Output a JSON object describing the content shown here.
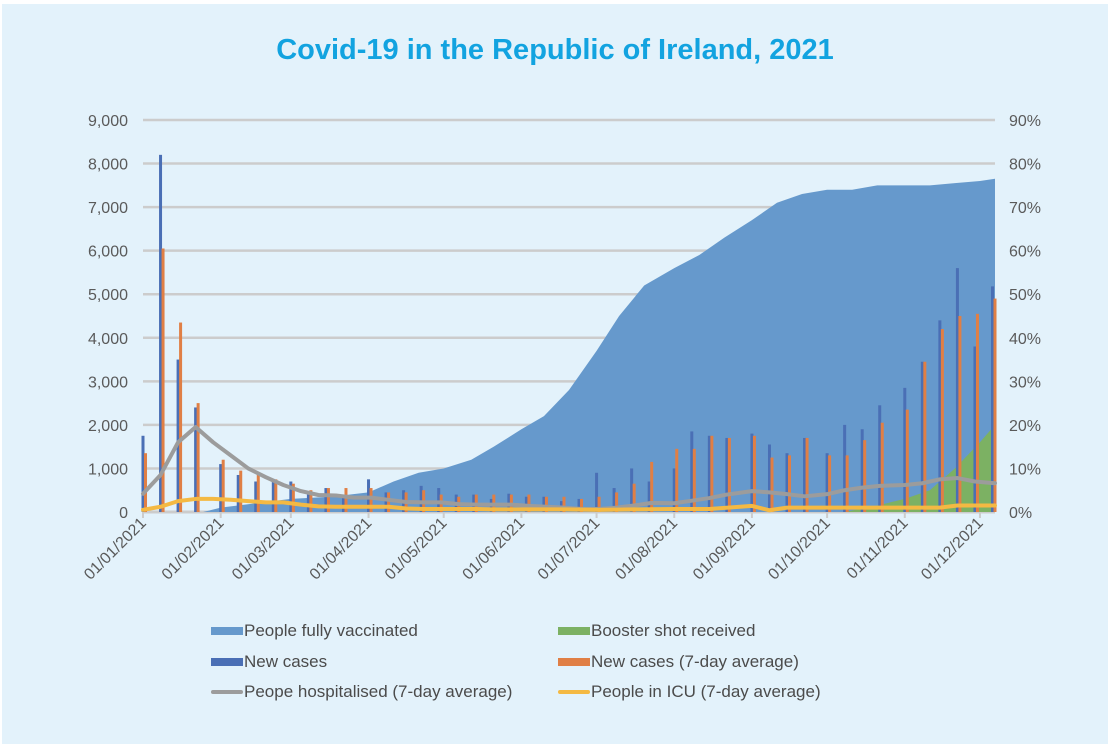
{
  "chart_data": {
    "type": "bar+line+area",
    "title": "Covid-19 in the Republic of Ireland, 2021",
    "x_unit": "day of year 2021 (0 = 01/01/2021)",
    "x_tick_labels": [
      "01/01/2021",
      "01/02/2021",
      "01/03/2021",
      "01/04/2021",
      "01/05/2021",
      "01/06/2021",
      "01/07/2021",
      "01/08/2021",
      "01/09/2021",
      "01/10/2021",
      "01/11/2021",
      "01/12/2021"
    ],
    "x_tick_days": [
      0,
      31,
      59,
      90,
      120,
      151,
      181,
      212,
      243,
      273,
      304,
      334
    ],
    "x_range": [
      0,
      340
    ],
    "left_axis": {
      "range": [
        0,
        9000
      ],
      "ticks": [
        "0",
        "1,000",
        "2,000",
        "3,000",
        "4,000",
        "5,000",
        "6,000",
        "7,000",
        "8,000",
        "9,000"
      ],
      "tick_values": [
        0,
        1000,
        2000,
        3000,
        4000,
        5000,
        6000,
        7000,
        8000,
        9000
      ]
    },
    "right_axis": {
      "range": [
        0,
        90
      ],
      "ticks": [
        "0%",
        "10%",
        "20%",
        "30%",
        "40%",
        "50%",
        "60%",
        "70%",
        "80%",
        "90%"
      ],
      "tick_values": [
        0,
        10,
        20,
        30,
        40,
        50,
        60,
        70,
        80,
        90
      ]
    },
    "grid": true,
    "legend_position": "bottom",
    "series": [
      {
        "name": "People fully vaccinated",
        "type": "area",
        "axis": "right",
        "color": "#6699cc",
        "x": [
          0,
          24,
          31,
          45,
          59,
          75,
          90,
          100,
          110,
          120,
          131,
          140,
          151,
          160,
          170,
          181,
          190,
          200,
          212,
          222,
          232,
          243,
          253,
          263,
          273,
          283,
          293,
          304,
          314,
          324,
          334,
          340
        ],
        "values": [
          0,
          0,
          1,
          2,
          3,
          3.5,
          4.5,
          7,
          9,
          10,
          12,
          15,
          19,
          22,
          28,
          37,
          45,
          52,
          56,
          59,
          63,
          67,
          71,
          73,
          74,
          74,
          75,
          75,
          75,
          75.5,
          76,
          76.5
        ]
      },
      {
        "name": "Booster shot received",
        "type": "area",
        "axis": "right",
        "color": "#7cb163",
        "x": [
          0,
          280,
          293,
          304,
          314,
          324,
          334,
          340
        ],
        "values": [
          0,
          0,
          1.5,
          3,
          5,
          10,
          16,
          20
        ]
      },
      {
        "name": "New cases",
        "type": "bar",
        "axis": "left",
        "color": "#4a6fb5",
        "x": [
          0,
          7,
          14,
          21,
          31,
          38,
          45,
          52,
          59,
          66,
          73,
          80,
          90,
          97,
          104,
          111,
          118,
          125,
          132,
          139,
          146,
          153,
          160,
          167,
          174,
          181,
          188,
          195,
          202,
          212,
          219,
          226,
          233,
          243,
          250,
          257,
          264,
          273,
          280,
          287,
          294,
          304,
          311,
          318,
          325,
          332,
          339
        ],
        "values": [
          1750,
          8200,
          3500,
          2400,
          1100,
          850,
          700,
          750,
          700,
          450,
          550,
          400,
          750,
          450,
          500,
          600,
          550,
          400,
          400,
          300,
          420,
          350,
          350,
          250,
          300,
          900,
          550,
          1000,
          700,
          1000,
          1850,
          1750,
          1700,
          1800,
          1550,
          1350,
          1700,
          1350,
          2000,
          1900,
          2450,
          2850,
          3450,
          4400,
          5600,
          3800,
          5180
        ]
      },
      {
        "name": "New cases (7-day average)",
        "type": "bar",
        "axis": "left",
        "color": "#e07f45",
        "x": [
          1,
          8,
          15,
          22,
          32,
          39,
          46,
          53,
          60,
          67,
          74,
          81,
          91,
          98,
          105,
          112,
          119,
          126,
          133,
          140,
          147,
          154,
          161,
          168,
          175,
          182,
          189,
          196,
          203,
          213,
          220,
          227,
          234,
          244,
          251,
          258,
          265,
          274,
          281,
          288,
          295,
          305,
          312,
          319,
          326,
          333,
          340
        ],
        "values": [
          1350,
          6050,
          4350,
          2500,
          1200,
          950,
          850,
          750,
          650,
          500,
          550,
          550,
          550,
          450,
          450,
          500,
          400,
          350,
          400,
          400,
          400,
          400,
          350,
          350,
          300,
          350,
          450,
          650,
          1150,
          1450,
          1450,
          1750,
          1700,
          1750,
          1250,
          1300,
          1700,
          1300,
          1300,
          1650,
          2050,
          2350,
          3450,
          4200,
          4500,
          4550,
          4900
        ]
      },
      {
        "name": "Peope hospitalised (7-day average)",
        "type": "line",
        "axis": "left",
        "color": "#9c9c9c",
        "x": [
          0,
          7,
          14,
          21,
          28,
          35,
          42,
          49,
          56,
          63,
          70,
          77,
          84,
          91,
          98,
          105,
          112,
          119,
          126,
          133,
          140,
          147,
          154,
          161,
          168,
          175,
          182,
          189,
          196,
          203,
          212,
          219,
          226,
          233,
          243,
          250,
          257,
          264,
          273,
          280,
          287,
          294,
          304,
          311,
          318,
          325,
          332,
          340
        ],
        "values": [
          420,
          850,
          1600,
          1950,
          1600,
          1300,
          1000,
          800,
          620,
          480,
          390,
          380,
          330,
          330,
          280,
          230,
          220,
          220,
          180,
          170,
          170,
          170,
          140,
          120,
          100,
          70,
          70,
          100,
          150,
          210,
          200,
          260,
          320,
          400,
          480,
          450,
          410,
          360,
          410,
          500,
          560,
          600,
          620,
          660,
          750,
          780,
          700,
          660
        ]
      },
      {
        "name": "People in ICU (7-day average)",
        "type": "line",
        "axis": "left",
        "color": "#f4b943",
        "x": [
          0,
          7,
          14,
          21,
          28,
          35,
          42,
          49,
          56,
          63,
          70,
          77,
          84,
          91,
          98,
          105,
          112,
          119,
          126,
          133,
          140,
          154,
          168,
          182,
          196,
          212,
          226,
          243,
          250,
          257,
          264,
          273,
          304,
          318,
          325,
          332,
          340
        ],
        "values": [
          50,
          120,
          250,
          300,
          300,
          280,
          250,
          220,
          220,
          170,
          130,
          120,
          120,
          120,
          120,
          80,
          70,
          70,
          70,
          70,
          60,
          60,
          60,
          50,
          60,
          70,
          70,
          140,
          40,
          100,
          100,
          100,
          100,
          100,
          150,
          150,
          150
        ]
      }
    ]
  },
  "legend": {
    "items": [
      {
        "label": "People fully vaccinated",
        "kind": "box",
        "color": "#6699cc"
      },
      {
        "label": "Booster shot received",
        "kind": "box",
        "color": "#7cb163"
      },
      {
        "label": "New cases",
        "kind": "box",
        "color": "#4a6fb5"
      },
      {
        "label": "New cases (7-day average)",
        "kind": "box",
        "color": "#e07f45"
      },
      {
        "label": "Peope hospitalised (7-day average)",
        "kind": "line",
        "color": "#9c9c9c"
      },
      {
        "label": "People in ICU (7-day average)",
        "kind": "line",
        "color": "#f4b943"
      }
    ]
  },
  "colors": {
    "background": "#e3f2fb",
    "title": "#12a3e0",
    "gridline": "#cccccc",
    "tick_text": "#5a5a5a"
  }
}
